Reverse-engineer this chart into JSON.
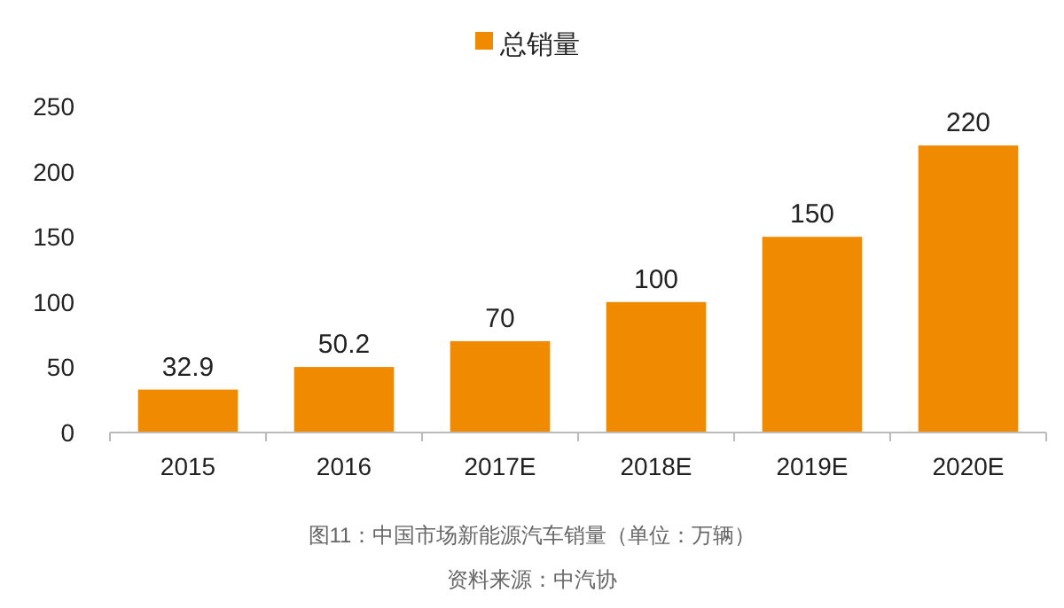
{
  "chart_data": {
    "type": "bar",
    "categories": [
      "2015",
      "2016",
      "2017E",
      "2018E",
      "2019E",
      "2020E"
    ],
    "series": [
      {
        "name": "总销量",
        "color": "#f08a00",
        "values": [
          32.9,
          50.2,
          70,
          100,
          150,
          220
        ]
      }
    ],
    "ylim": [
      0,
      250
    ],
    "yticks": [
      0,
      50,
      100,
      150,
      200,
      250
    ],
    "grid": false,
    "legend": "top",
    "data_labels": true,
    "annotations": [
      "图11：中国市场新能源汽车销量（单位：万辆）",
      "资料来源：中汽协"
    ]
  }
}
